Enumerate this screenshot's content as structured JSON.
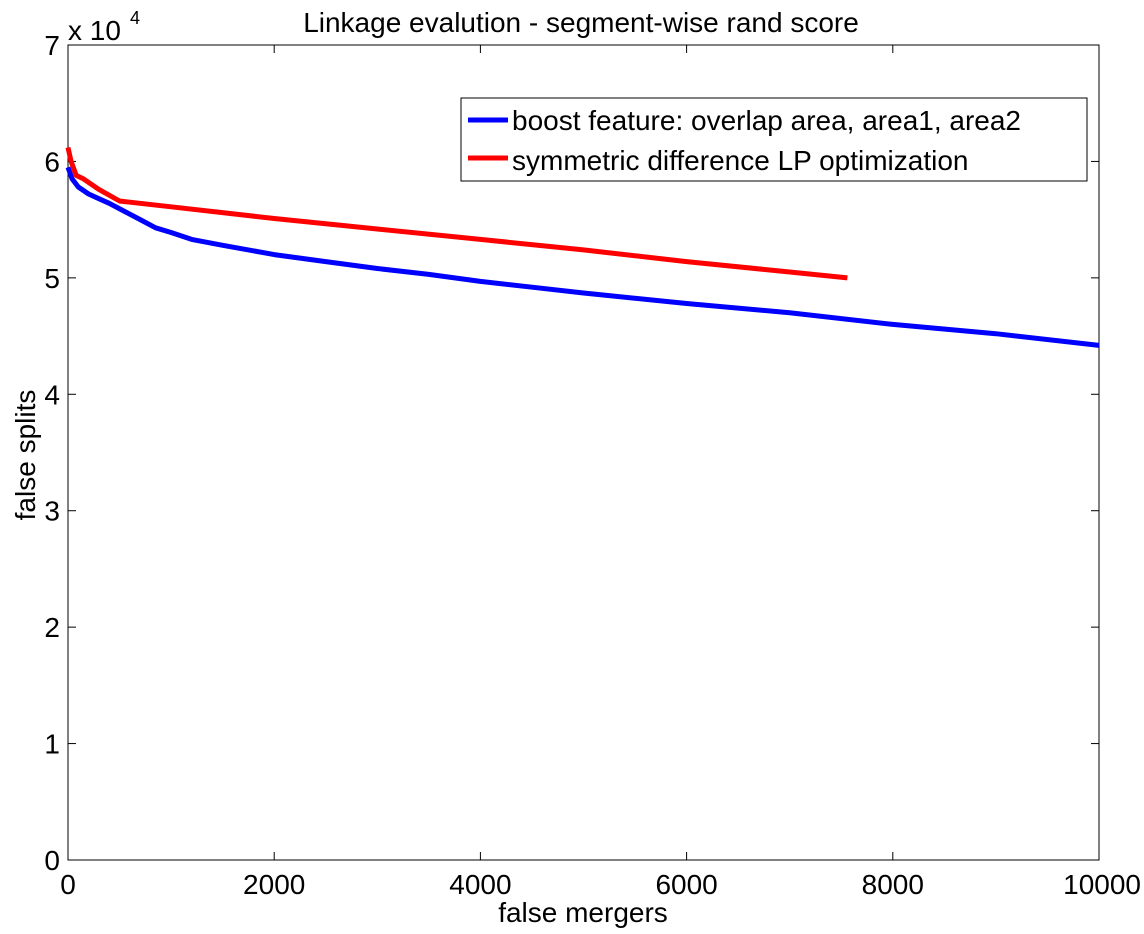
{
  "chart_data": {
    "type": "line",
    "title": "Linkage evalution - segment-wise rand score",
    "xlabel": "false mergers",
    "ylabel": "false splits",
    "xlim": [
      0,
      10000
    ],
    "ylim": [
      0,
      7
    ],
    "y_multiplier_prefix": "x 10",
    "y_multiplier_exponent": "4",
    "x_ticks": [
      0,
      2000,
      4000,
      6000,
      8000,
      10000
    ],
    "x_tick_labels": [
      "0",
      "2000",
      "4000",
      "6000",
      "8000",
      "10000"
    ],
    "y_ticks": [
      0,
      1,
      2,
      3,
      4,
      5,
      6,
      7
    ],
    "y_tick_labels": [
      "0",
      "1",
      "2",
      "3",
      "4",
      "5",
      "6",
      "7"
    ],
    "grid": false,
    "legend_position": "top-right",
    "series": [
      {
        "name": "boost feature: overlap area, area1, area2",
        "color": "#0000ff",
        "x": [
          0,
          40,
          100,
          200,
          300,
          400,
          550,
          700,
          850,
          1000,
          1200,
          1500,
          2000,
          2500,
          3000,
          3500,
          4000,
          4500,
          5000,
          6000,
          7000,
          8000,
          9000,
          10000
        ],
        "y": [
          5.95,
          5.85,
          5.78,
          5.72,
          5.68,
          5.64,
          5.57,
          5.5,
          5.43,
          5.39,
          5.33,
          5.28,
          5.2,
          5.14,
          5.08,
          5.03,
          4.97,
          4.92,
          4.87,
          4.78,
          4.7,
          4.6,
          4.52,
          4.42
        ]
      },
      {
        "name": "symmetric difference LP optimization",
        "color": "#ff0000",
        "x": [
          0,
          30,
          80,
          150,
          300,
          500,
          600,
          1000,
          2000,
          3000,
          4000,
          5000,
          6000,
          7000,
          7560
        ],
        "y": [
          6.12,
          6.0,
          5.88,
          5.85,
          5.76,
          5.66,
          5.65,
          5.61,
          5.51,
          5.42,
          5.33,
          5.24,
          5.14,
          5.05,
          5.0
        ]
      }
    ]
  }
}
